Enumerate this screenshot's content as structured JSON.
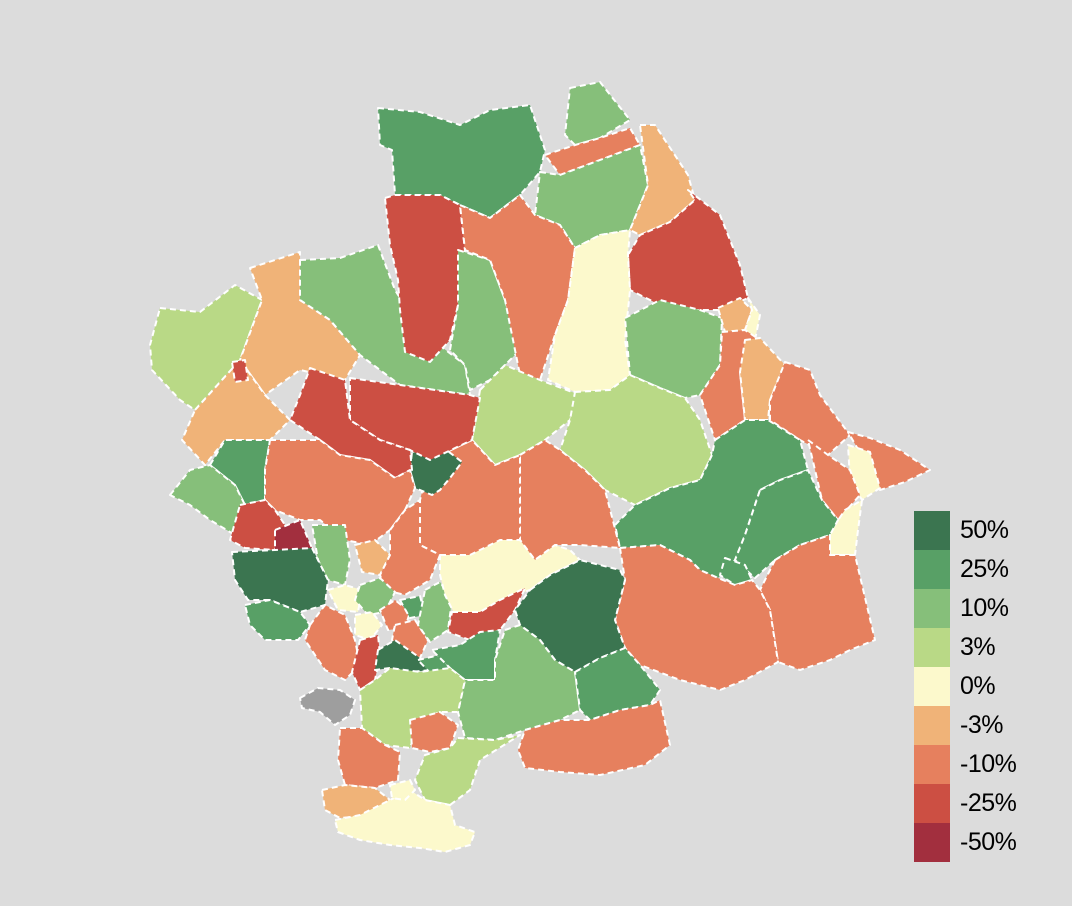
{
  "map": {
    "type": "choropleth",
    "colors": {
      "p50": "#3b7550",
      "p25": "#58a066",
      "p10": "#86bf7a",
      "p3": "#b9d986",
      "z0": "#fcf9cc",
      "n3": "#f0b378",
      "n10": "#e6805e",
      "n25": "#cc4f43",
      "n50": "#a22f3e",
      "nodata": "#9e9e9e"
    }
  },
  "legend": {
    "items": [
      {
        "label": "50%",
        "color": "#3b7550"
      },
      {
        "label": "25%",
        "color": "#58a066"
      },
      {
        "label": "10%",
        "color": "#86bf7a"
      },
      {
        "label": "3%",
        "color": "#b9d986"
      },
      {
        "label": "0%",
        "color": "#fcf9cc"
      },
      {
        "label": "-3%",
        "color": "#f0b378"
      },
      {
        "label": "-10%",
        "color": "#e6805e"
      },
      {
        "label": "-25%",
        "color": "#cc4f43"
      },
      {
        "label": "-50%",
        "color": "#a22f3e"
      }
    ]
  }
}
